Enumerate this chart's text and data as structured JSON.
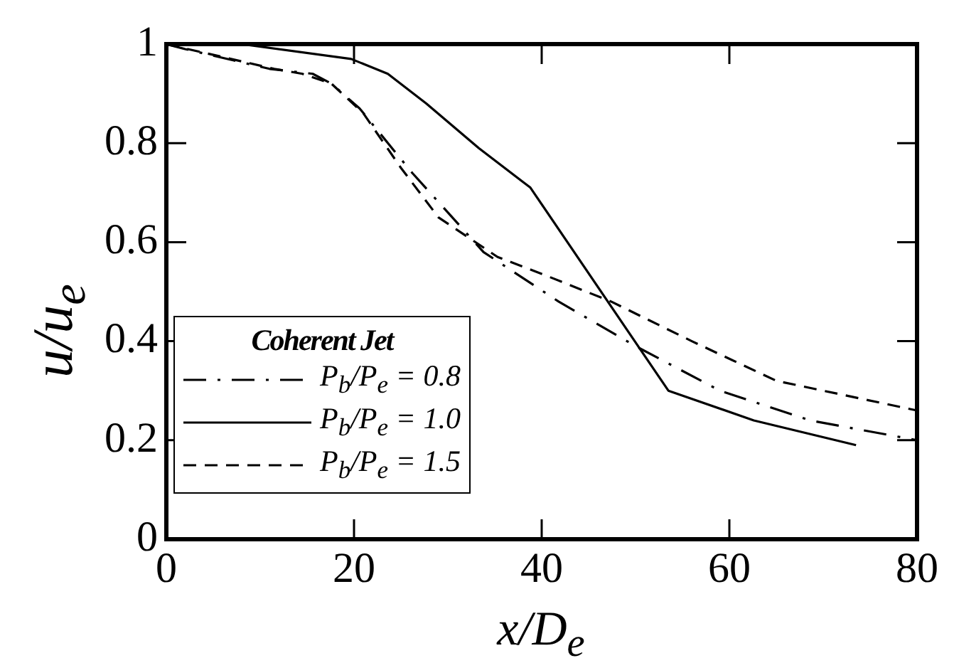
{
  "chart_data": {
    "type": "line",
    "xlabel": "x/D$_{e}$",
    "ylabel": "u/u$_{e}$",
    "legend_title": "Coherent Jet",
    "xlim": [
      0,
      80
    ],
    "xticks": [
      0,
      20,
      40,
      60,
      80
    ],
    "ylim": [
      0,
      1
    ],
    "yticks": [
      0,
      0.2,
      0.4,
      0.6,
      0.8,
      1
    ],
    "grid": false,
    "legend": "bottom left",
    "marker": "none",
    "series": [
      {
        "name": "P$_{b}$/P$_{e}$ = 0.8",
        "color": "#000000",
        "line_style": "dashdot",
        "x": [
          0,
          2,
          11,
          15.6,
          17.6,
          20.6,
          26.2,
          33.8,
          41.8,
          50,
          59,
          68.6,
          80
        ],
        "values": [
          1,
          0.99,
          0.95,
          0.94,
          0.92,
          0.87,
          0.74,
          0.58,
          0.48,
          0.39,
          0.3,
          0.24,
          0.2
        ]
      },
      {
        "name": "P$_{b}$/P$_{e}$ = 1.0",
        "color": "#000000",
        "line_style": "solid",
        "x": [
          0,
          8,
          19.7,
          23.6,
          27.7,
          33.3,
          38.8,
          53.5,
          62.6,
          73.5
        ],
        "values": [
          1,
          1,
          0.97,
          0.94,
          0.88,
          0.79,
          0.71,
          0.3,
          0.24,
          0.19
        ]
      },
      {
        "name": "P$_{b}$/P$_{e}$ = 1.5",
        "color": "#000000",
        "line_style": "dashed",
        "x": [
          0,
          11.5,
          14.5,
          17.6,
          21,
          25,
          29,
          35.3,
          40.8,
          47.4,
          56,
          65,
          80
        ],
        "values": [
          1,
          0.95,
          0.94,
          0.92,
          0.86,
          0.75,
          0.65,
          0.57,
          0.53,
          0.48,
          0.4,
          0.32,
          0.26
        ]
      }
    ]
  }
}
